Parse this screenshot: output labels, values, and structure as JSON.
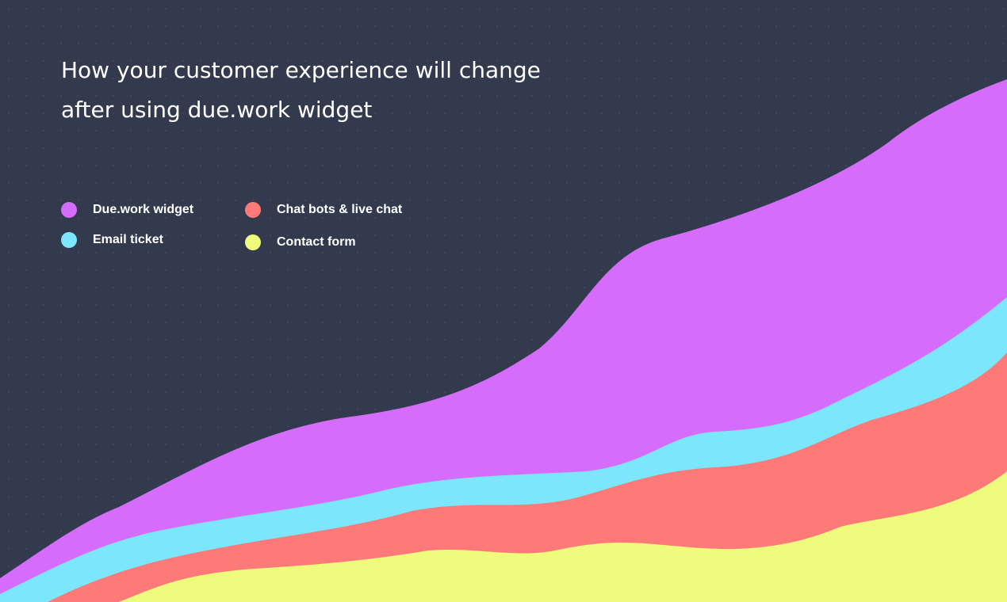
{
  "header": {
    "title_lines": [
      "How your customer experience will change",
      "after using due.work widget"
    ]
  },
  "legend": [
    {
      "name": "Due.work widget",
      "color": "#d56cfb"
    },
    {
      "name": "Email ticket",
      "color": "#7ce6fd"
    },
    {
      "name": "Chat bots & live chat",
      "color": "#fe7a79"
    },
    {
      "name": "Contact form",
      "color": "#eefb7d"
    }
  ]
}
